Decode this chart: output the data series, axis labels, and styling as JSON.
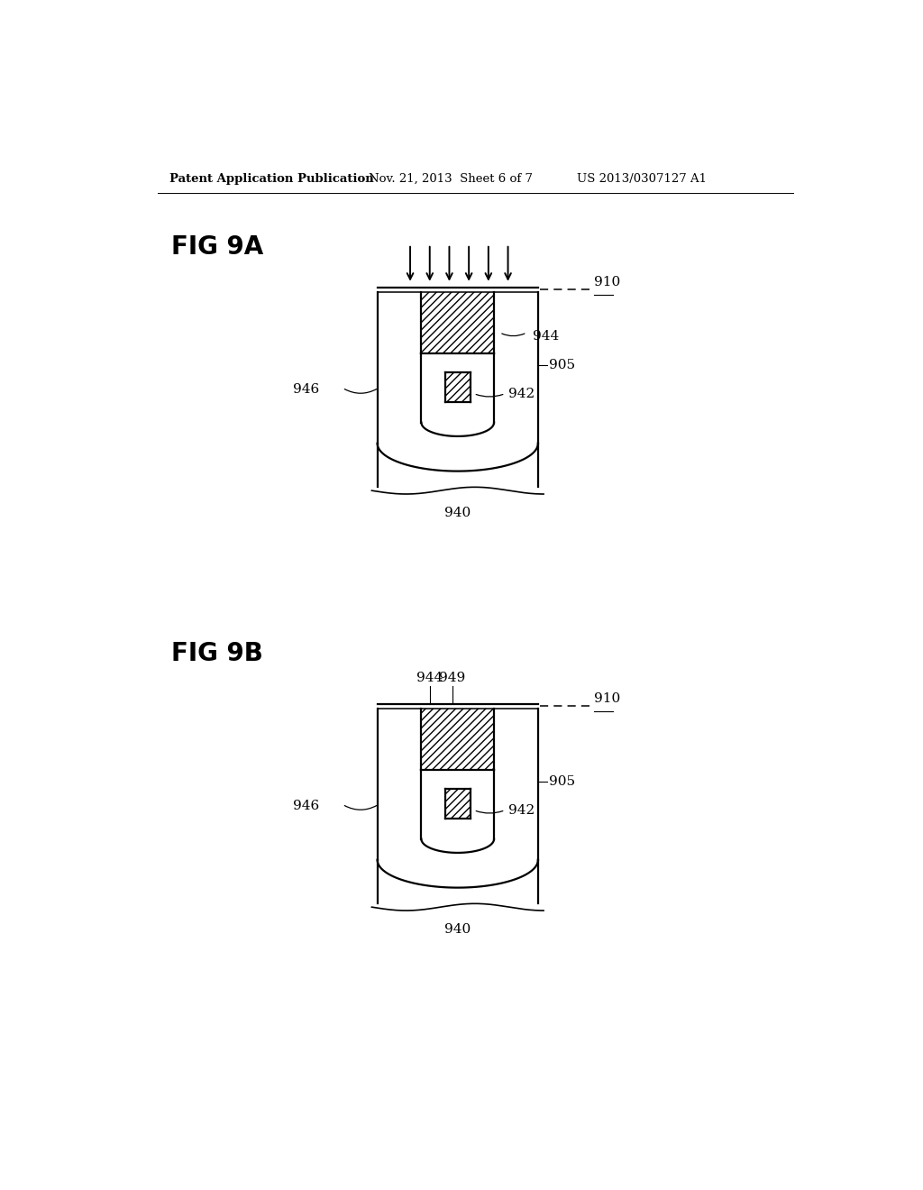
{
  "bg_color": "#ffffff",
  "header_text": "Patent Application Publication",
  "header_date": "Nov. 21, 2013  Sheet 6 of 7",
  "header_patent": "US 2013/0307127 A1",
  "fig9a_label": "FIG 9A",
  "fig9b_label": "FIG 9B",
  "label_910": "910",
  "label_944": "944",
  "label_905": "905",
  "label_942": "942",
  "label_946": "946",
  "label_940": "940",
  "label_949": "949"
}
